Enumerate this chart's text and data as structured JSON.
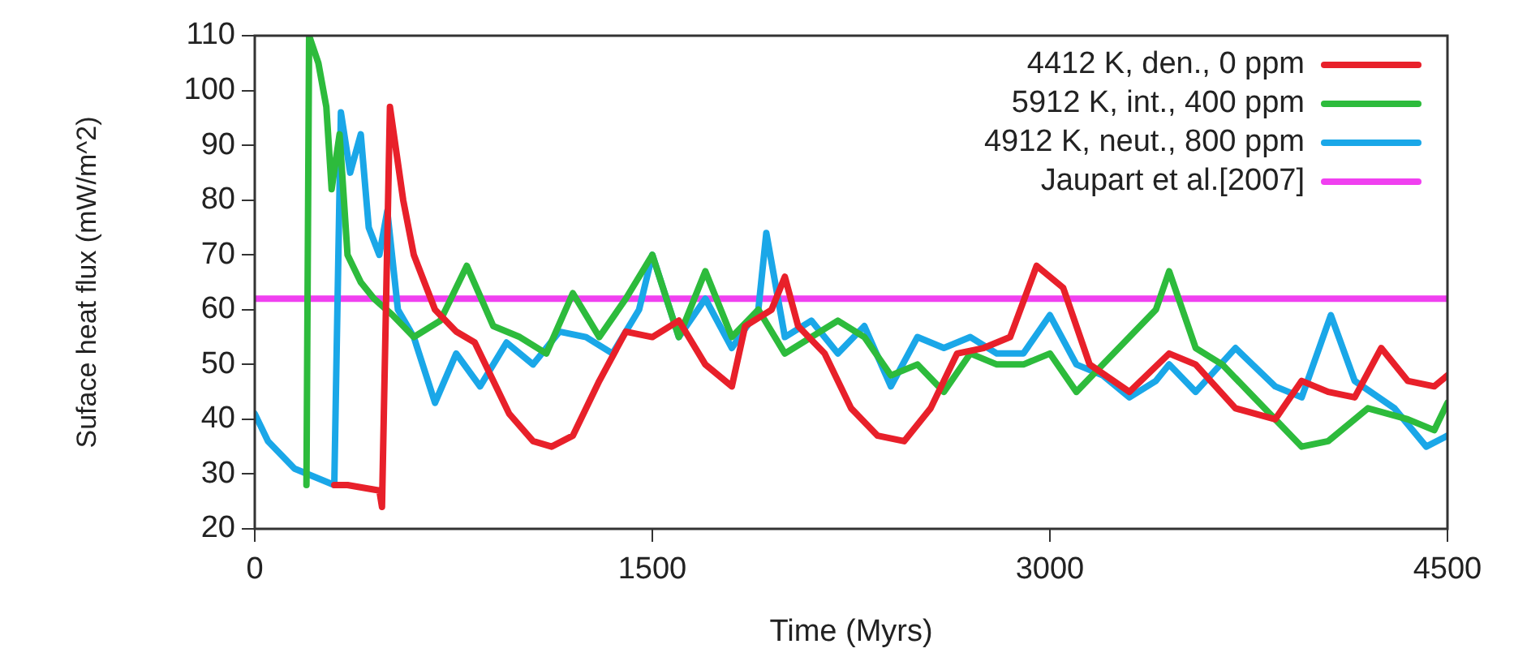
{
  "chart_data": {
    "type": "line",
    "xlabel": "Time (Myrs)",
    "ylabel": "Suface heat flux (mW/m^2)",
    "xlim": [
      0,
      4500
    ],
    "xticks": [
      0,
      1500,
      3000,
      4500
    ],
    "ylim": [
      20,
      110
    ],
    "yticks": [
      20,
      30,
      40,
      50,
      60,
      70,
      80,
      90,
      100,
      110
    ],
    "grid": false,
    "legend": "top right",
    "marker": "none",
    "line_style": "solid",
    "series": [
      {
        "name": "4412 K, den., 0 ppm",
        "color": "#e8202a",
        "x": [
          300,
          350,
          470,
          480,
          510,
          560,
          600,
          680,
          760,
          830,
          900,
          960,
          1050,
          1120,
          1200,
          1300,
          1400,
          1500,
          1600,
          1700,
          1800,
          1850,
          1950,
          2000,
          2050,
          2150,
          2250,
          2350,
          2450,
          2550,
          2650,
          2750,
          2850,
          2950,
          3050,
          3150,
          3300,
          3450,
          3550,
          3700,
          3850,
          3950,
          4050,
          4150,
          4250,
          4350,
          4450,
          4500
        ],
        "values": [
          28,
          28,
          27,
          24,
          97,
          80,
          70,
          60,
          56,
          54,
          47,
          41,
          36,
          35,
          37,
          47,
          56,
          55,
          58,
          50,
          46,
          57,
          60,
          66,
          57,
          52,
          42,
          37,
          36,
          42,
          52,
          53,
          55,
          68,
          64,
          50,
          45,
          52,
          50,
          42,
          40,
          47,
          45,
          44,
          53,
          47,
          46,
          48
        ]
      },
      {
        "name": "5912 K, int., 400 ppm",
        "color": "#2dbb3c",
        "x": [
          195,
          205,
          240,
          270,
          290,
          320,
          350,
          400,
          450,
          520,
          600,
          700,
          800,
          900,
          1000,
          1100,
          1200,
          1300,
          1400,
          1500,
          1600,
          1700,
          1800,
          1900,
          2000,
          2100,
          2200,
          2300,
          2400,
          2500,
          2600,
          2700,
          2800,
          2900,
          3000,
          3100,
          3200,
          3300,
          3400,
          3450,
          3550,
          3650,
          3750,
          3850,
          3950,
          4050,
          4200,
          4350,
          4450,
          4500
        ],
        "values": [
          28,
          110,
          105,
          97,
          82,
          92,
          70,
          65,
          62,
          59,
          55,
          58,
          68,
          57,
          55,
          52,
          63,
          55,
          62,
          70,
          55,
          67,
          55,
          60,
          52,
          55,
          58,
          55,
          48,
          50,
          45,
          52,
          50,
          50,
          52,
          45,
          50,
          55,
          60,
          67,
          53,
          50,
          45,
          40,
          35,
          36,
          42,
          40,
          38,
          43
        ]
      },
      {
        "name": "4912 K, neut., 800 ppm",
        "color": "#1aa7e8",
        "x": [
          0,
          50,
          150,
          250,
          300,
          325,
          360,
          400,
          430,
          470,
          500,
          540,
          600,
          680,
          760,
          850,
          950,
          1050,
          1150,
          1250,
          1350,
          1450,
          1500,
          1600,
          1700,
          1800,
          1900,
          1930,
          2000,
          2100,
          2200,
          2300,
          2400,
          2500,
          2600,
          2700,
          2800,
          2900,
          3000,
          3100,
          3200,
          3300,
          3400,
          3450,
          3550,
          3700,
          3850,
          3950,
          4060,
          4150,
          4300,
          4420,
          4500
        ],
        "values": [
          41,
          36,
          31,
          29,
          28,
          96,
          85,
          92,
          75,
          70,
          78,
          60,
          55,
          43,
          52,
          46,
          54,
          50,
          56,
          55,
          52,
          60,
          70,
          55,
          62,
          53,
          60,
          74,
          55,
          58,
          52,
          57,
          46,
          55,
          53,
          55,
          52,
          52,
          59,
          50,
          48,
          44,
          47,
          50,
          45,
          53,
          46,
          44,
          59,
          47,
          42,
          35,
          37
        ]
      },
      {
        "name": "Jaupart et al.[2007]",
        "color": "#f040f0",
        "x": [
          0,
          4500
        ],
        "values": [
          62,
          62
        ]
      }
    ]
  }
}
